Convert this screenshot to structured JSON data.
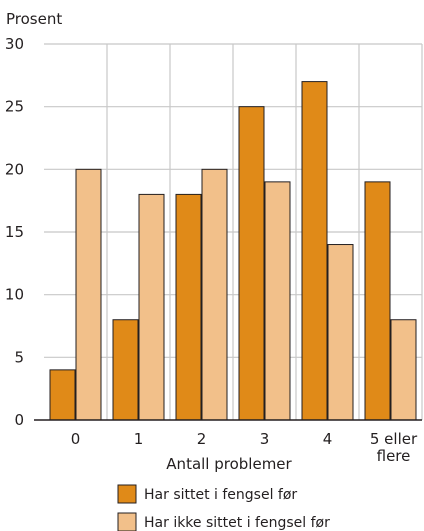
{
  "chart_data": {
    "type": "bar",
    "ylabel": "Prosent",
    "xlabel": "Antall problemer",
    "categories": [
      [
        "0"
      ],
      [
        "1"
      ],
      [
        "2"
      ],
      [
        "3"
      ],
      [
        "4"
      ],
      [
        "5 eller",
        "flere"
      ]
    ],
    "series": [
      {
        "name": "Har sittet i fengsel før",
        "color": "#e08a18",
        "values": [
          4,
          8,
          18,
          25,
          27,
          19
        ]
      },
      {
        "name": "Har ikke sittet i fengsel før",
        "color": "#f2c08a",
        "values": [
          20,
          18,
          20,
          19,
          14,
          8
        ]
      }
    ],
    "ylim": [
      0,
      30
    ],
    "yticks": [
      0,
      5,
      10,
      15,
      20,
      25,
      30
    ],
    "grid": true,
    "legend": "bottom",
    "colors": {
      "grid": "#c8c8c8",
      "bar_stroke": "#231f20",
      "axis": "#231f20"
    }
  }
}
